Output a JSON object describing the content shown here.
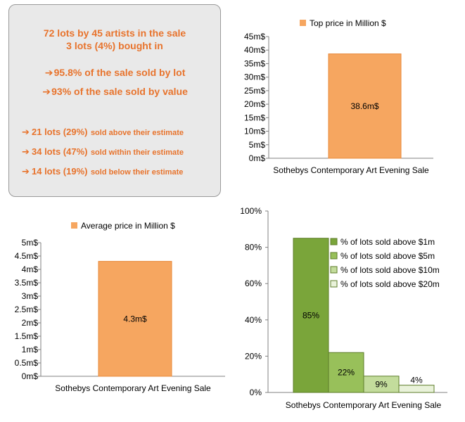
{
  "summary": {
    "line1": "72 lots by 45 artists in the sale",
    "line2": "3 lots (4%) bought in",
    "bullets_value": [
      {
        "arrow": "➔",
        "text": "95.8% of the sale sold by lot"
      },
      {
        "arrow": "➔",
        "text": "93% of the sale sold by value"
      }
    ],
    "bullets_estimate": [
      {
        "arrow": "➔",
        "main": "21 lots (29%)",
        "rest": "sold above their estimate"
      },
      {
        "arrow": "➔",
        "main": "34 lots (47%)",
        "rest": "sold within their estimate"
      },
      {
        "arrow": "➔",
        "main": "14 lots (19%)",
        "rest": "sold below their estimate"
      }
    ],
    "text_color": "#e8732c"
  },
  "chart_data": [
    {
      "id": "top",
      "type": "bar",
      "categories": [
        "Sothebys Contemporary Art Evening Sale"
      ],
      "series": [
        {
          "name": "Top price in Million $",
          "values": [
            38.6
          ],
          "color": "#f6a660"
        }
      ],
      "data_labels": [
        "38.6m$"
      ],
      "y_ticks": [
        "0m$",
        "5m$",
        "10m$",
        "15m$",
        "20m$",
        "25m$",
        "30m$",
        "35m$",
        "40m$",
        "45m$"
      ],
      "ylim": [
        0,
        45
      ],
      "legend": "top"
    },
    {
      "id": "avg",
      "type": "bar",
      "categories": [
        "Sothebys Contemporary Art Evening Sale"
      ],
      "series": [
        {
          "name": "Average price in Million $",
          "values": [
            4.3
          ],
          "color": "#f6a660"
        }
      ],
      "data_labels": [
        "4.3m$"
      ],
      "y_ticks": [
        "0m$",
        "0.5m$",
        "1m$",
        "1.5m$",
        "2m$",
        "2.5m$",
        "3m$",
        "3.5m$",
        "4m$",
        "4.5m$",
        "5m$"
      ],
      "ylim": [
        0,
        5
      ],
      "legend": "top"
    },
    {
      "id": "pct",
      "type": "bar",
      "categories": [
        "Sothebys Contemporary Art Evening Sale"
      ],
      "series": [
        {
          "name": "% of lots sold above $1m",
          "values": [
            85
          ],
          "color": "#7aa53a",
          "label": "85%"
        },
        {
          "name": "% of lots sold above $5m",
          "values": [
            22
          ],
          "color": "#98c05a",
          "label": "22%"
        },
        {
          "name": "% of lots sold above $10m",
          "values": [
            9
          ],
          "color": "#c3dc9c",
          "label": "9%"
        },
        {
          "name": "% of lots sold above $20m",
          "values": [
            4
          ],
          "color": "#e9f2da",
          "label": "4%"
        }
      ],
      "y_ticks": [
        "0%",
        "20%",
        "40%",
        "60%",
        "80%",
        "100%"
      ],
      "ylim": [
        0,
        100
      ],
      "legend": "right"
    }
  ]
}
